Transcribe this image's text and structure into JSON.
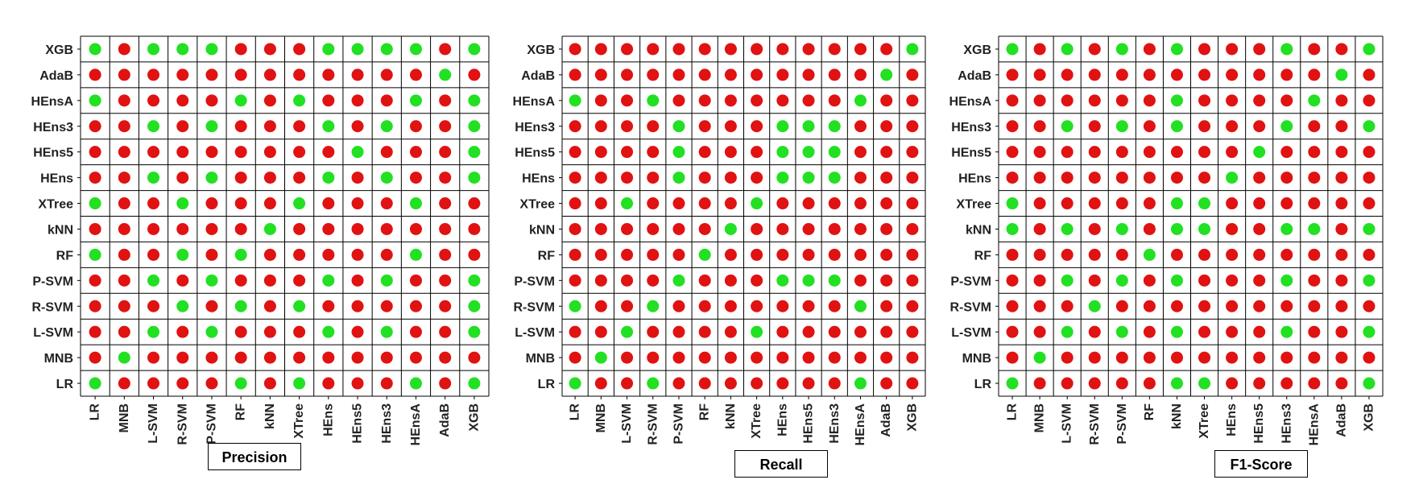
{
  "chart_data": [
    {
      "type": "heatmap",
      "title": "Precision",
      "labels": [
        "LR",
        "MNB",
        "L-SVM",
        "R-SVM",
        "P-SVM",
        "RF",
        "kNN",
        "XTree",
        "HEns",
        "HEns5",
        "HEns3",
        "HEnsA",
        "AdaB",
        "XGB"
      ],
      "matrix_rows_top_to_bottom": [
        "XGB",
        "AdaB",
        "HEnsA",
        "HEns3",
        "HEns5",
        "HEns",
        "XTree",
        "kNN",
        "RF",
        "P-SVM",
        "R-SVM",
        "L-SVM",
        "MNB",
        "LR"
      ],
      "values": [
        [
          1,
          0,
          1,
          1,
          1,
          0,
          0,
          0,
          1,
          1,
          1,
          1,
          0,
          1
        ],
        [
          0,
          0,
          0,
          0,
          0,
          0,
          0,
          0,
          0,
          0,
          0,
          0,
          1,
          0
        ],
        [
          1,
          0,
          0,
          0,
          0,
          1,
          0,
          1,
          0,
          0,
          0,
          1,
          0,
          1
        ],
        [
          0,
          0,
          1,
          0,
          1,
          0,
          0,
          0,
          1,
          0,
          1,
          0,
          0,
          1
        ],
        [
          0,
          0,
          0,
          0,
          0,
          0,
          0,
          0,
          0,
          1,
          0,
          0,
          0,
          1
        ],
        [
          0,
          0,
          1,
          0,
          1,
          0,
          0,
          0,
          1,
          0,
          1,
          0,
          0,
          1
        ],
        [
          1,
          0,
          0,
          1,
          0,
          0,
          0,
          1,
          0,
          0,
          0,
          1,
          0,
          0
        ],
        [
          0,
          0,
          0,
          0,
          0,
          0,
          1,
          0,
          0,
          0,
          0,
          0,
          0,
          0
        ],
        [
          1,
          0,
          0,
          1,
          0,
          1,
          0,
          0,
          0,
          0,
          0,
          1,
          0,
          0
        ],
        [
          0,
          0,
          1,
          0,
          1,
          0,
          0,
          0,
          1,
          0,
          1,
          0,
          0,
          1
        ],
        [
          0,
          0,
          0,
          1,
          0,
          1,
          0,
          1,
          0,
          0,
          0,
          0,
          0,
          1
        ],
        [
          0,
          0,
          1,
          0,
          1,
          0,
          0,
          0,
          1,
          0,
          1,
          0,
          0,
          1
        ],
        [
          0,
          1,
          0,
          0,
          0,
          0,
          0,
          0,
          0,
          0,
          0,
          0,
          0,
          0
        ],
        [
          1,
          0,
          0,
          0,
          0,
          1,
          0,
          1,
          0,
          0,
          0,
          1,
          0,
          1
        ]
      ]
    },
    {
      "type": "heatmap",
      "title": "Recall",
      "labels": [
        "LR",
        "MNB",
        "L-SVM",
        "R-SVM",
        "P-SVM",
        "RF",
        "kNN",
        "XTree",
        "HEns",
        "HEns5",
        "HEns3",
        "HEnsA",
        "AdaB",
        "XGB"
      ],
      "matrix_rows_top_to_bottom": [
        "XGB",
        "AdaB",
        "HEnsA",
        "HEns3",
        "HEns5",
        "HEns",
        "XTree",
        "kNN",
        "RF",
        "P-SVM",
        "R-SVM",
        "L-SVM",
        "MNB",
        "LR"
      ],
      "values": [
        [
          0,
          0,
          0,
          0,
          0,
          0,
          0,
          0,
          0,
          0,
          0,
          0,
          0,
          1
        ],
        [
          0,
          0,
          0,
          0,
          0,
          0,
          0,
          0,
          0,
          0,
          0,
          0,
          1,
          0
        ],
        [
          1,
          0,
          0,
          1,
          0,
          0,
          0,
          0,
          0,
          0,
          0,
          1,
          0,
          0
        ],
        [
          0,
          0,
          0,
          0,
          1,
          0,
          0,
          0,
          1,
          1,
          1,
          0,
          0,
          0
        ],
        [
          0,
          0,
          0,
          0,
          1,
          0,
          0,
          0,
          1,
          1,
          1,
          0,
          0,
          0
        ],
        [
          0,
          0,
          0,
          0,
          1,
          0,
          0,
          0,
          1,
          1,
          1,
          0,
          0,
          0
        ],
        [
          0,
          0,
          1,
          0,
          0,
          0,
          0,
          1,
          0,
          0,
          0,
          0,
          0,
          0
        ],
        [
          0,
          0,
          0,
          0,
          0,
          0,
          1,
          0,
          0,
          0,
          0,
          0,
          0,
          0
        ],
        [
          0,
          0,
          0,
          0,
          0,
          1,
          0,
          0,
          0,
          0,
          0,
          0,
          0,
          0
        ],
        [
          0,
          0,
          0,
          0,
          1,
          0,
          0,
          0,
          1,
          1,
          1,
          0,
          0,
          0
        ],
        [
          1,
          0,
          0,
          1,
          0,
          0,
          0,
          0,
          0,
          0,
          0,
          1,
          0,
          0
        ],
        [
          0,
          0,
          1,
          0,
          0,
          0,
          0,
          1,
          0,
          0,
          0,
          0,
          0,
          0
        ],
        [
          0,
          1,
          0,
          0,
          0,
          0,
          0,
          0,
          0,
          0,
          0,
          0,
          0,
          0
        ],
        [
          1,
          0,
          0,
          1,
          0,
          0,
          0,
          0,
          0,
          0,
          0,
          1,
          0,
          0
        ]
      ]
    },
    {
      "type": "heatmap",
      "title": "F1-Score",
      "labels": [
        "LR",
        "MNB",
        "L-SVM",
        "R-SVM",
        "P-SVM",
        "RF",
        "kNN",
        "XTree",
        "HEns",
        "HEns5",
        "HEns3",
        "HEnsA",
        "AdaB",
        "XGB"
      ],
      "matrix_rows_top_to_bottom": [
        "XGB",
        "AdaB",
        "HEnsA",
        "HEns3",
        "HEns5",
        "HEns",
        "XTree",
        "kNN",
        "RF",
        "P-SVM",
        "R-SVM",
        "L-SVM",
        "MNB",
        "LR"
      ],
      "values": [
        [
          1,
          0,
          1,
          0,
          1,
          0,
          1,
          0,
          0,
          0,
          1,
          0,
          0,
          1
        ],
        [
          0,
          0,
          0,
          0,
          0,
          0,
          0,
          0,
          0,
          0,
          0,
          0,
          1,
          0
        ],
        [
          0,
          0,
          0,
          0,
          0,
          0,
          1,
          0,
          0,
          0,
          0,
          1,
          0,
          0
        ],
        [
          0,
          0,
          1,
          0,
          1,
          0,
          1,
          0,
          0,
          0,
          1,
          0,
          0,
          1
        ],
        [
          0,
          0,
          0,
          0,
          0,
          0,
          0,
          0,
          0,
          1,
          0,
          0,
          0,
          0
        ],
        [
          0,
          0,
          0,
          0,
          0,
          0,
          0,
          0,
          1,
          0,
          0,
          0,
          0,
          0
        ],
        [
          1,
          0,
          0,
          0,
          0,
          0,
          1,
          1,
          0,
          0,
          0,
          0,
          0,
          0
        ],
        [
          1,
          0,
          1,
          0,
          1,
          0,
          1,
          1,
          0,
          0,
          1,
          1,
          0,
          1
        ],
        [
          0,
          0,
          0,
          0,
          0,
          1,
          0,
          0,
          0,
          0,
          0,
          0,
          0,
          0
        ],
        [
          0,
          0,
          1,
          0,
          1,
          0,
          1,
          0,
          0,
          0,
          1,
          0,
          0,
          1
        ],
        [
          0,
          0,
          0,
          1,
          0,
          0,
          0,
          0,
          0,
          0,
          0,
          0,
          0,
          0
        ],
        [
          0,
          0,
          1,
          0,
          1,
          0,
          1,
          0,
          0,
          0,
          1,
          0,
          0,
          1
        ],
        [
          0,
          1,
          0,
          0,
          0,
          0,
          0,
          0,
          0,
          0,
          0,
          0,
          0,
          0
        ],
        [
          1,
          0,
          0,
          0,
          0,
          0,
          1,
          1,
          0,
          0,
          0,
          0,
          0,
          1
        ]
      ]
    }
  ],
  "colors": {
    "one": "#22e022",
    "zero": "#e01212",
    "grid": "#000000"
  },
  "panels": [
    {
      "caption": "Precision"
    },
    {
      "caption": "Recall"
    },
    {
      "caption": "F1-Score"
    }
  ]
}
